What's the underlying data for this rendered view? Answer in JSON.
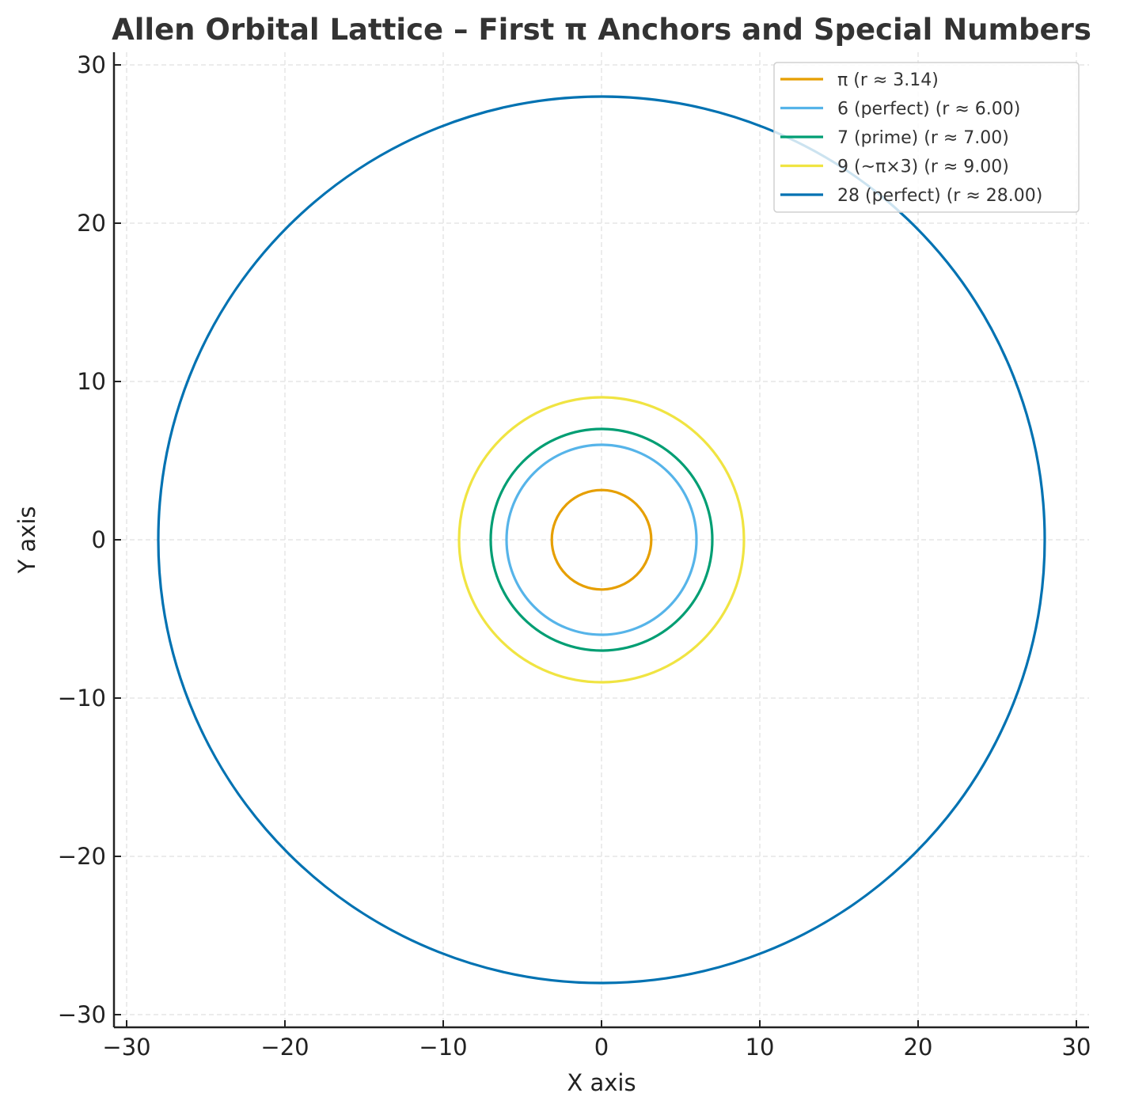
{
  "chart_data": {
    "type": "line",
    "title": "Allen Orbital Lattice – First π Anchors and Special Numbers",
    "xlabel": "X axis",
    "ylabel": "Y axis",
    "xlim": [
      -30.8,
      30.8
    ],
    "ylim": [
      -30.8,
      30.8
    ],
    "xticks": [
      -30,
      -20,
      -10,
      0,
      10,
      20,
      30
    ],
    "yticks": [
      -30,
      -20,
      -10,
      0,
      10,
      20,
      30
    ],
    "xtick_labels": [
      "−30",
      "−20",
      "−10",
      "0",
      "10",
      "20",
      "30"
    ],
    "ytick_labels": [
      "−30",
      "−20",
      "−10",
      "0",
      "10",
      "20",
      "30"
    ],
    "grid": true,
    "legend_position": "upper right",
    "aspect": "equal",
    "series": [
      {
        "name": "π (r ≈ 3.14)",
        "shape": "circle",
        "center": [
          0,
          0
        ],
        "radius": 3.14159,
        "color": "#E69F00"
      },
      {
        "name": "6 (perfect) (r ≈ 6.00)",
        "shape": "circle",
        "center": [
          0,
          0
        ],
        "radius": 6.0,
        "color": "#56B4E9"
      },
      {
        "name": "7 (prime) (r ≈ 7.00)",
        "shape": "circle",
        "center": [
          0,
          0
        ],
        "radius": 7.0,
        "color": "#009E73"
      },
      {
        "name": "9 (~π×3) (r ≈ 9.00)",
        "shape": "circle",
        "center": [
          0,
          0
        ],
        "radius": 9.0,
        "color": "#F0E442"
      },
      {
        "name": "28 (perfect) (r ≈ 28.00)",
        "shape": "circle",
        "center": [
          0,
          0
        ],
        "radius": 28.0,
        "color": "#0072B2"
      }
    ]
  }
}
